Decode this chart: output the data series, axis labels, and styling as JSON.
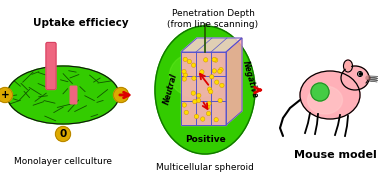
{
  "bg_color": "#ffffff",
  "uptake_text": "Uptake efficiecy",
  "monolayer_text": "Monolayer cellculture",
  "penetration_text": "Penetration Depth\n(from line scanning)",
  "spheroid_text": "Multicellular spheroid",
  "mouse_text": "Mouse model",
  "positive_label": "Positive",
  "neutral_label": "Neutral",
  "negative_label": "Negative",
  "arrow_color": "#dd0000",
  "green_color": "#33cc00",
  "green_dark": "#117700",
  "pink_color": "#ffb0b8",
  "pink_light": "#ffd0d5",
  "yellow_dot_color": "#ffdd00",
  "gold_circle_color": "#ddaa00",
  "rod_color": "#ee6680",
  "axis_line_color": "#5555cc",
  "mouse_body_color": "#ffb0b8",
  "tumor_color": "#44cc44",
  "line_color": "#225500"
}
